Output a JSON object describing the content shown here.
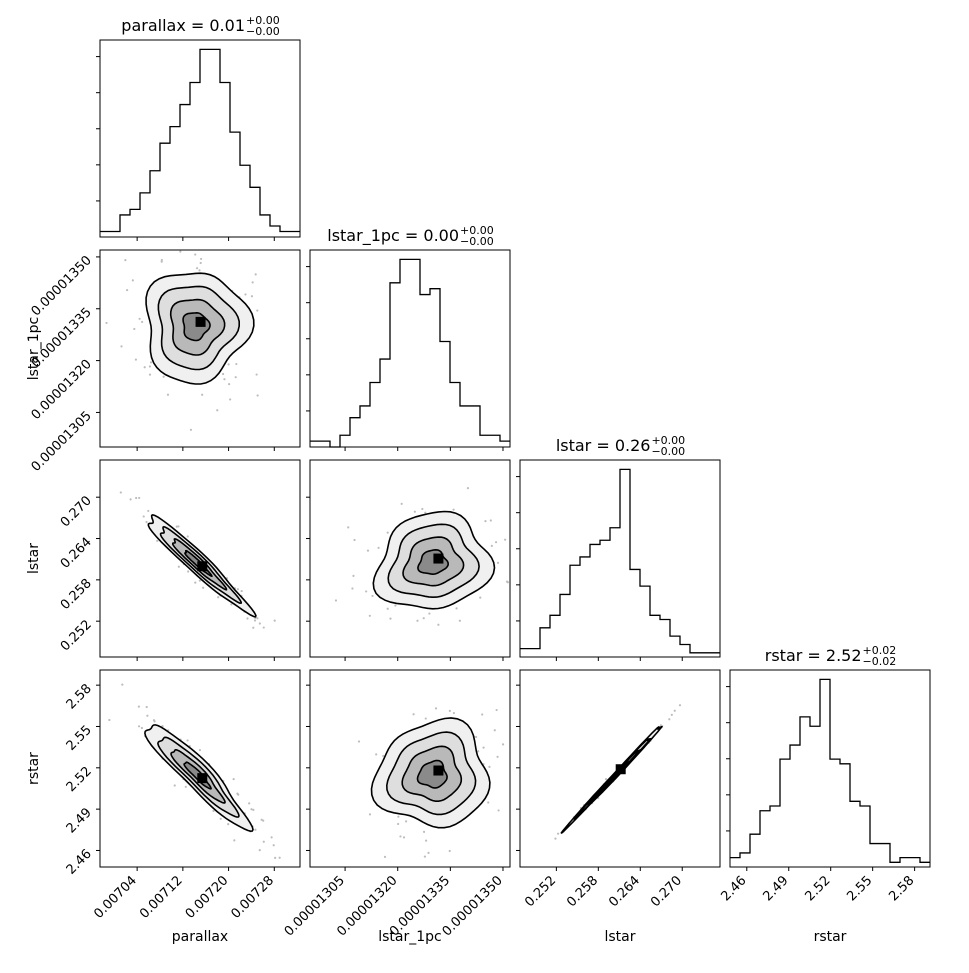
{
  "chart_data": {
    "type": "corner",
    "parameters": [
      "parallax",
      "lstar_1pc",
      "lstar",
      "rstar"
    ],
    "titles": [
      {
        "param": "parallax",
        "prefix": "parallax = ",
        "value": "0.01",
        "plus": "+0.00",
        "minus": "−0.00"
      },
      {
        "param": "lstar_1pc",
        "prefix": "lstar_1pc = ",
        "value": "0.00",
        "plus": "+0.00",
        "minus": "−0.00"
      },
      {
        "param": "lstar",
        "prefix": "lstar = ",
        "value": "0.26",
        "plus": "+0.00",
        "minus": "−0.00"
      },
      {
        "param": "rstar",
        "prefix": "rstar = ",
        "value": "2.52",
        "plus": "+0.02",
        "minus": "−0.02"
      }
    ],
    "axis_labels": {
      "x": [
        "parallax",
        "lstar_1pc",
        "lstar",
        "rstar"
      ],
      "y": [
        "lstar_1pc",
        "lstar",
        "rstar"
      ]
    },
    "ticks": {
      "parallax": [
        "0.00704",
        "0.00712",
        "0.00720",
        "0.00728"
      ],
      "lstar_1pc": [
        "0.00001305",
        "0.00001320",
        "0.00001335",
        "0.00001350"
      ],
      "lstar": [
        "0.252",
        "0.258",
        "0.264",
        "0.270"
      ],
      "rstar": [
        "2.46",
        "2.49",
        "2.52",
        "2.55",
        "2.58"
      ]
    },
    "ranges": {
      "parallax": [
        0.006975,
        0.007325
      ],
      "lstar_1pc": [
        1.295e-05,
        1.352e-05
      ],
      "lstar": [
        0.2468,
        0.2754
      ],
      "rstar": [
        2.448,
        2.591
      ]
    },
    "histograms": {
      "parallax": {
        "bin_edges": [
          0.006975,
          0.007325
        ],
        "counts": [
          1,
          1,
          4,
          5,
          8,
          12,
          17,
          20,
          24,
          28,
          34,
          34,
          28,
          19,
          13,
          9,
          4,
          2,
          1,
          1
        ]
      },
      "lstar_1pc": {
        "bin_edges": [
          1.295e-05,
          1.352e-05
        ],
        "counts": [
          1,
          1,
          0,
          2,
          5,
          7,
          11,
          15,
          28,
          32,
          32,
          26,
          27,
          18,
          11,
          7,
          7,
          2,
          2,
          1
        ]
      },
      "lstar": {
        "bin_edges": [
          0.2468,
          0.2754
        ],
        "counts": [
          2,
          2,
          7,
          10,
          15,
          22,
          24,
          27,
          28,
          31,
          45,
          21,
          17,
          10,
          9,
          5,
          3,
          1,
          1,
          1
        ]
      },
      "rstar": {
        "bin_edges": [
          2.448,
          2.591
        ],
        "counts": [
          2,
          3,
          7,
          12,
          13,
          23,
          26,
          32,
          30,
          40,
          23,
          22,
          14,
          13,
          5,
          5,
          1,
          2,
          2,
          1
        ]
      }
    },
    "correlations": [
      {
        "x": "parallax",
        "y": "lstar_1pc",
        "cx": 0.007142,
        "cy": 1.33e-05,
        "sx": 4.5e-05,
        "sy": 8e-08,
        "rho": 0.0
      },
      {
        "x": "parallax",
        "y": "lstar",
        "cx": 0.007145,
        "cy": 0.2605,
        "sx": 4.5e-05,
        "sy": 0.0035,
        "rho": -0.96
      },
      {
        "x": "lstar_1pc",
        "y": "lstar",
        "cx": 1.33e-05,
        "cy": 0.2605,
        "sx": 8e-08,
        "sy": 0.0035,
        "rho": 0.1
      },
      {
        "x": "parallax",
        "y": "rstar",
        "cx": 0.007145,
        "cy": 2.515,
        "sx": 4.5e-05,
        "sy": 0.019,
        "rho": -0.93
      },
      {
        "x": "lstar_1pc",
        "y": "rstar",
        "cx": 1.33e-05,
        "cy": 2.515,
        "sx": 8e-08,
        "sy": 0.019,
        "rho": 0.05
      },
      {
        "x": "lstar",
        "y": "rstar",
        "cx": 0.2605,
        "cy": 2.515,
        "sx": 0.0035,
        "sy": 0.019,
        "rho": 0.998
      }
    ],
    "contour_levels_sigma": [
      0.5,
      1.0,
      1.5,
      2.0
    ]
  }
}
